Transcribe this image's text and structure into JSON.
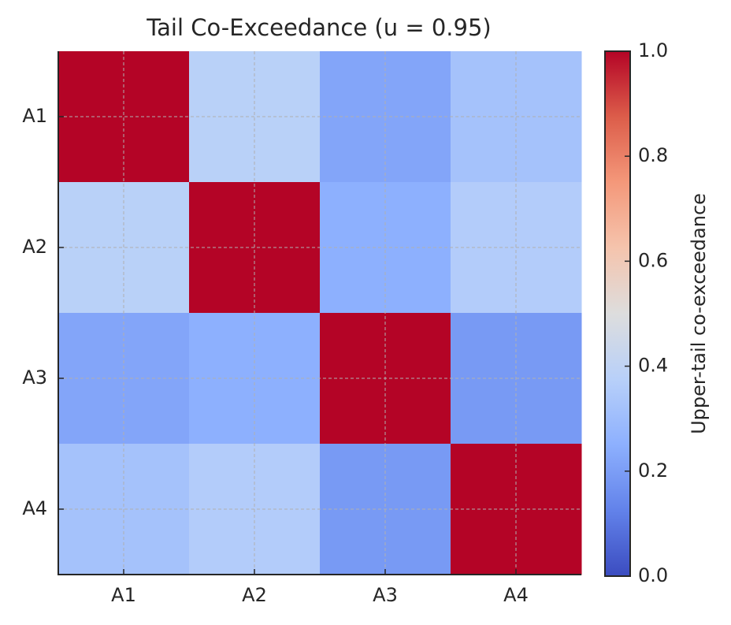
{
  "chart_data": {
    "type": "heatmap",
    "title": "Tail Co-Exceedance (u = 0.95)",
    "x_categories": [
      "A1",
      "A2",
      "A3",
      "A4"
    ],
    "y_categories": [
      "A1",
      "A2",
      "A3",
      "A4"
    ],
    "values": [
      [
        1.0,
        0.38,
        0.22,
        0.32
      ],
      [
        0.38,
        1.0,
        0.25,
        0.36
      ],
      [
        0.22,
        0.25,
        1.0,
        0.19
      ],
      [
        0.32,
        0.36,
        0.19,
        1.0
      ]
    ],
    "colormap": "coolwarm",
    "clim": [
      0,
      1.0
    ],
    "colorbar_label": "Upper-tail co-exceedance",
    "colorbar_ticks": [
      {
        "value": 0,
        "label": "0.0"
      },
      0.2,
      0.4,
      0.6,
      0.8,
      {
        "value": 1,
        "label": "1.0"
      }
    ],
    "grid": true
  }
}
